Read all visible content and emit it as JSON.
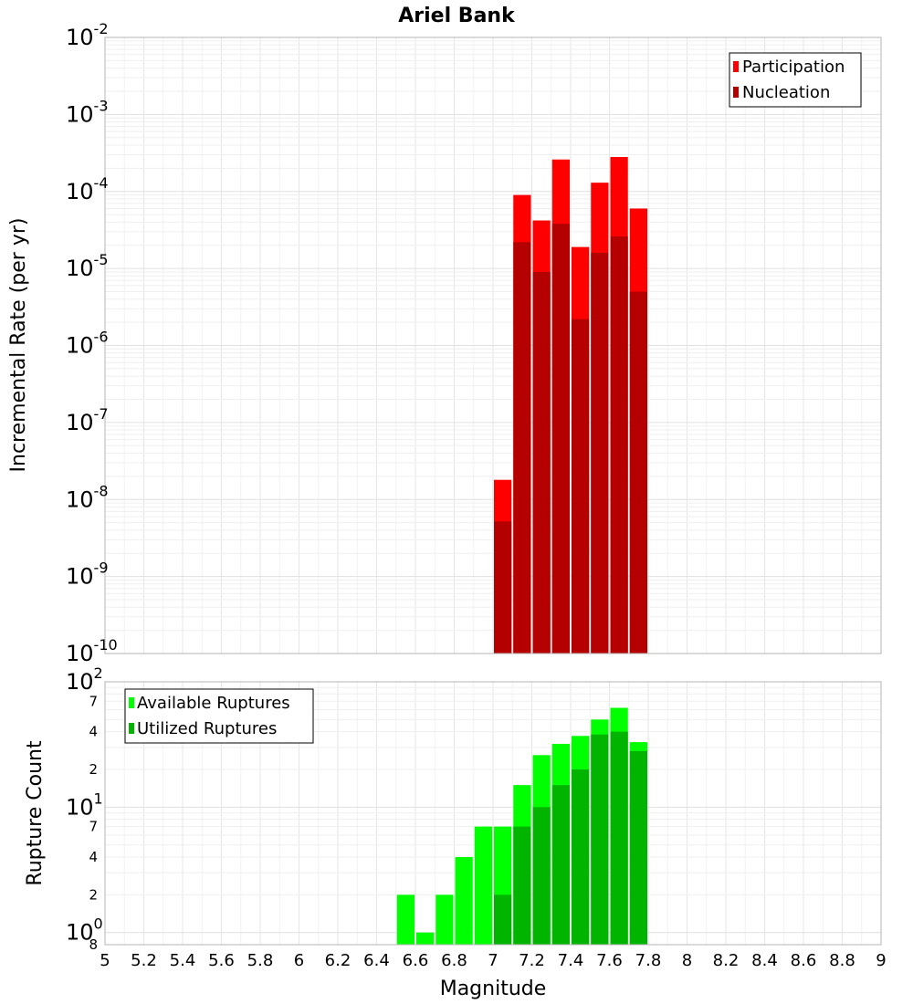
{
  "chart_data": [
    {
      "type": "bar",
      "title": "Ariel Bank",
      "xlabel": "",
      "ylabel": "Incremental Rate (per yr)",
      "yscale": "log",
      "ylim": [
        1e-10,
        0.01
      ],
      "xlim": [
        5,
        9
      ],
      "y_ticks": [
        {
          "base": "10",
          "exp": "-10"
        },
        {
          "base": "10",
          "exp": "-9"
        },
        {
          "base": "10",
          "exp": "-8"
        },
        {
          "base": "10",
          "exp": "-7"
        },
        {
          "base": "10",
          "exp": "-6"
        },
        {
          "base": "10",
          "exp": "-5"
        },
        {
          "base": "10",
          "exp": "-4"
        },
        {
          "base": "10",
          "exp": "-3"
        },
        {
          "base": "10",
          "exp": "-2"
        }
      ],
      "grid": true,
      "legend_position": "top-right",
      "x": [
        7.05,
        7.15,
        7.25,
        7.35,
        7.45,
        7.55,
        7.65,
        7.75
      ],
      "series": [
        {
          "name": "Participation",
          "color": "#ff0000",
          "values": [
            1.8e-08,
            9e-05,
            4.2e-05,
            0.00026,
            1.9e-05,
            0.00013,
            0.00028,
            6e-05
          ]
        },
        {
          "name": "Nucleation",
          "color": "#b40000",
          "values": [
            5.2e-09,
            2.2e-05,
            9e-06,
            3.8e-05,
            2.2e-06,
            1.6e-05,
            2.6e-05,
            5e-06
          ]
        }
      ]
    },
    {
      "type": "bar",
      "title": "",
      "xlabel": "Magnitude",
      "ylabel": "Rupture Count",
      "yscale": "log",
      "ylim": [
        0.8,
        100
      ],
      "xlim": [
        5,
        9
      ],
      "x_ticks": [
        "5",
        "5.2",
        "5.4",
        "5.6",
        "5.8",
        "6",
        "6.2",
        "6.4",
        "6.6",
        "6.8",
        "7",
        "7.2",
        "7.4",
        "7.6",
        "7.8",
        "8",
        "8.2",
        "8.4",
        "8.6",
        "8.8",
        "9"
      ],
      "y_major_ticks": [
        {
          "base": "10",
          "exp": "0"
        },
        {
          "base": "10",
          "exp": "1"
        },
        {
          "base": "10",
          "exp": "2"
        }
      ],
      "y_minor_labels": [
        {
          "label": "8",
          "value": 0.8
        },
        {
          "label": "2",
          "value": 2
        },
        {
          "label": "4",
          "value": 4
        },
        {
          "label": "7",
          "value": 7
        },
        {
          "label": "2",
          "value": 20
        },
        {
          "label": "4",
          "value": 40
        },
        {
          "label": "7",
          "value": 70
        }
      ],
      "grid": true,
      "legend_position": "top-left",
      "x": [
        6.55,
        6.65,
        6.75,
        6.85,
        6.95,
        7.05,
        7.15,
        7.25,
        7.35,
        7.45,
        7.55,
        7.65,
        7.75
      ],
      "series": [
        {
          "name": "Available Ruptures",
          "color": "#00ff00",
          "values": [
            2,
            1,
            2,
            4,
            7,
            7,
            15,
            26,
            32,
            37,
            50,
            62,
            33
          ]
        },
        {
          "name": "Utilized Ruptures",
          "color": "#00b400",
          "values": [
            0,
            0,
            0,
            0,
            0,
            2,
            7,
            10,
            15,
            20,
            38,
            40,
            28
          ]
        }
      ]
    }
  ]
}
